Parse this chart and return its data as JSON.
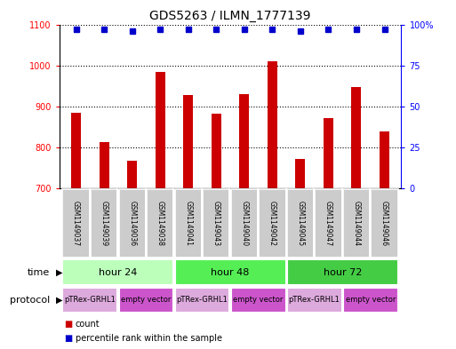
{
  "title": "GDS5263 / ILMN_1777139",
  "samples": [
    "GSM1149037",
    "GSM1149039",
    "GSM1149036",
    "GSM1149038",
    "GSM1149041",
    "GSM1149043",
    "GSM1149040",
    "GSM1149042",
    "GSM1149045",
    "GSM1149047",
    "GSM1149044",
    "GSM1149046"
  ],
  "counts": [
    885,
    813,
    767,
    985,
    928,
    882,
    930,
    1010,
    773,
    872,
    948,
    838
  ],
  "percentile_ranks": [
    97,
    97,
    96,
    97,
    97,
    97,
    97,
    97,
    96,
    97,
    97,
    97
  ],
  "ylim_left": [
    700,
    1100
  ],
  "ylim_right": [
    0,
    100
  ],
  "yticks_left": [
    700,
    800,
    900,
    1000,
    1100
  ],
  "yticks_right": [
    0,
    25,
    50,
    75,
    100
  ],
  "bar_color": "#cc0000",
  "dot_color": "#0000cc",
  "time_groups": [
    {
      "label": "hour 24",
      "start": 0,
      "end": 3,
      "color": "#bbffbb"
    },
    {
      "label": "hour 48",
      "start": 4,
      "end": 7,
      "color": "#55ee55"
    },
    {
      "label": "hour 72",
      "start": 8,
      "end": 11,
      "color": "#44cc44"
    }
  ],
  "protocol_groups": [
    {
      "label": "pTRex-GRHL1",
      "start": 0,
      "end": 1,
      "color": "#ddaadd"
    },
    {
      "label": "empty vector",
      "start": 2,
      "end": 3,
      "color": "#cc55cc"
    },
    {
      "label": "pTRex-GRHL1",
      "start": 4,
      "end": 5,
      "color": "#ddaadd"
    },
    {
      "label": "empty vector",
      "start": 6,
      "end": 7,
      "color": "#cc55cc"
    },
    {
      "label": "pTRex-GRHL1",
      "start": 8,
      "end": 9,
      "color": "#ddaadd"
    },
    {
      "label": "empty vector",
      "start": 10,
      "end": 11,
      "color": "#cc55cc"
    }
  ],
  "time_row_label": "time",
  "protocol_row_label": "protocol",
  "legend_count_label": "count",
  "legend_percentile_label": "percentile rank within the sample",
  "bar_width": 0.35,
  "sample_box_color": "#cccccc",
  "fig_bg": "#ffffff"
}
